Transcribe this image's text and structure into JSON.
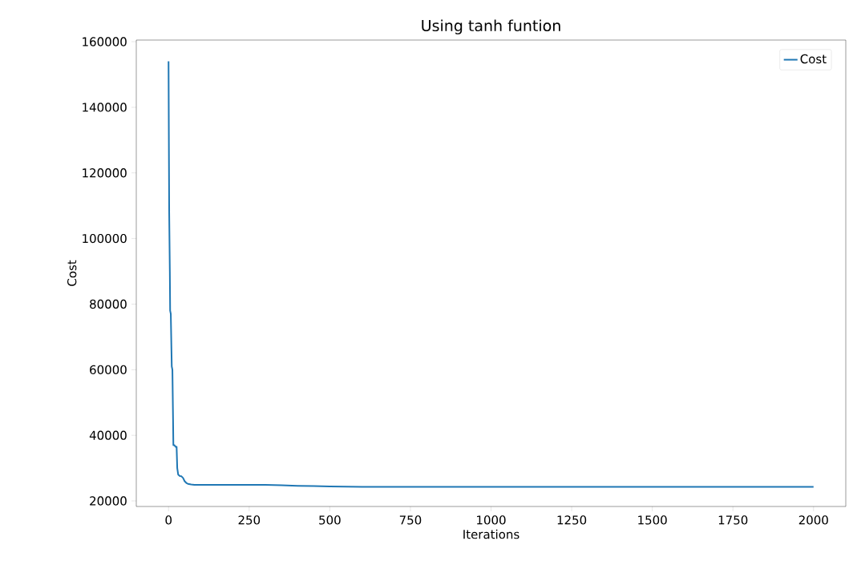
{
  "chart_data": {
    "type": "line",
    "title": "Using tanh funtion",
    "xlabel": "Iterations",
    "ylabel": "Cost",
    "x": [
      0,
      1,
      2,
      4,
      5,
      7,
      9,
      10,
      12,
      14,
      15,
      18,
      22,
      25,
      27,
      30,
      35,
      40,
      45,
      50,
      55,
      60,
      70,
      80,
      100,
      200,
      300,
      350,
      400,
      450,
      500,
      600,
      800,
      1000,
      1500,
      2000
    ],
    "series": [
      {
        "name": "Cost",
        "color": "#1f77b4",
        "values": [
          154000,
          130000,
          108000,
          90000,
          78000,
          77000,
          66000,
          61000,
          60000,
          45000,
          37000,
          37000,
          36500,
          36500,
          30000,
          28000,
          27600,
          27500,
          27000,
          26000,
          25500,
          25200,
          25000,
          24900,
          24900,
          24900,
          24900,
          24800,
          24600,
          24500,
          24400,
          24300,
          24300,
          24300,
          24300,
          24300
        ]
      }
    ],
    "xlim": [
      -100,
      2100
    ],
    "ylim": [
      18300,
      160500
    ],
    "xticks": [
      0,
      250,
      500,
      750,
      1000,
      1250,
      1500,
      1750,
      2000
    ],
    "yticks": [
      20000,
      40000,
      60000,
      80000,
      100000,
      120000,
      140000,
      160000
    ],
    "legend": "top right",
    "grid": false,
    "marker": "none",
    "line_style": "solid"
  }
}
